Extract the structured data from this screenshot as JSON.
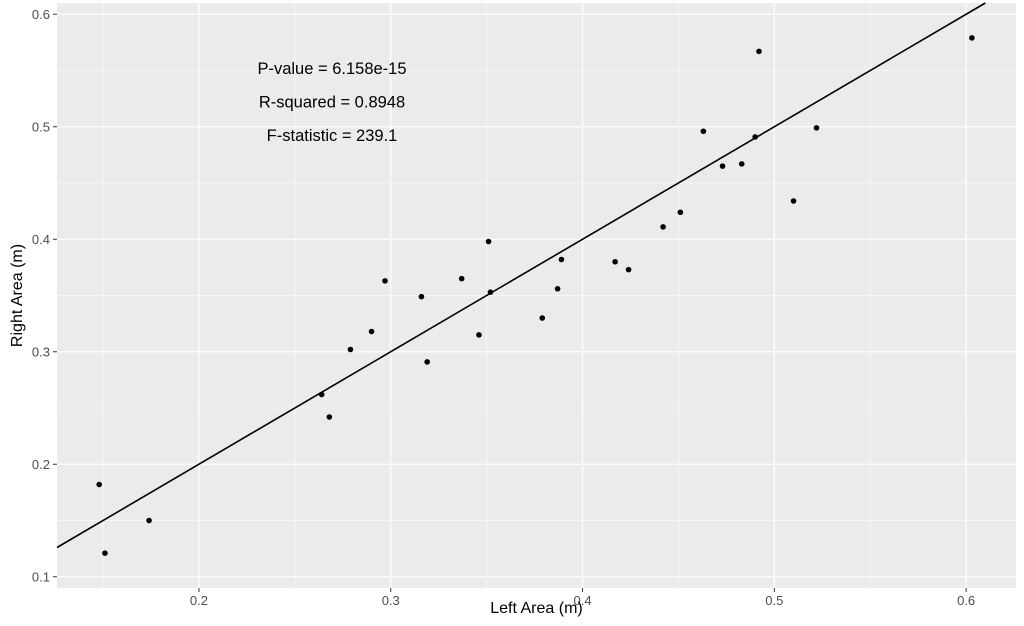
{
  "chart_data": {
    "type": "scatter",
    "title": "",
    "xlabel": "Left Area (m)",
    "ylabel": "Right Area (m)",
    "xlim": [
      0.126,
      0.626
    ],
    "ylim": [
      0.09,
      0.61
    ],
    "x_ticks": [
      0.2,
      0.3,
      0.4,
      0.5,
      0.6
    ],
    "y_ticks": [
      0.1,
      0.2,
      0.3,
      0.4,
      0.5,
      0.6
    ],
    "x_minor": [
      0.15,
      0.25,
      0.35,
      0.45,
      0.55
    ],
    "y_minor": [
      0.15,
      0.25,
      0.35,
      0.45,
      0.55
    ],
    "grid": true,
    "colors": {
      "panel": "#ebebeb",
      "grid": "#ffffff",
      "point": "#000000",
      "line": "#000000",
      "tick_text": "#4d4d4d"
    },
    "annotations": [
      "P-value = 6.158e-15",
      "R-squared = 0.8948",
      "F-statistic = 239.1"
    ],
    "fit_line": {
      "slope": 1.0,
      "intercept": 0.0
    },
    "points": [
      {
        "x": 0.148,
        "y": 0.182
      },
      {
        "x": 0.151,
        "y": 0.121
      },
      {
        "x": 0.174,
        "y": 0.15
      },
      {
        "x": 0.264,
        "y": 0.262
      },
      {
        "x": 0.268,
        "y": 0.242
      },
      {
        "x": 0.279,
        "y": 0.302
      },
      {
        "x": 0.29,
        "y": 0.318
      },
      {
        "x": 0.297,
        "y": 0.363
      },
      {
        "x": 0.316,
        "y": 0.349
      },
      {
        "x": 0.319,
        "y": 0.291
      },
      {
        "x": 0.337,
        "y": 0.365
      },
      {
        "x": 0.346,
        "y": 0.315
      },
      {
        "x": 0.351,
        "y": 0.398
      },
      {
        "x": 0.352,
        "y": 0.353
      },
      {
        "x": 0.379,
        "y": 0.33
      },
      {
        "x": 0.387,
        "y": 0.356
      },
      {
        "x": 0.389,
        "y": 0.382
      },
      {
        "x": 0.417,
        "y": 0.38
      },
      {
        "x": 0.424,
        "y": 0.373
      },
      {
        "x": 0.442,
        "y": 0.411
      },
      {
        "x": 0.451,
        "y": 0.424
      },
      {
        "x": 0.463,
        "y": 0.496
      },
      {
        "x": 0.473,
        "y": 0.465
      },
      {
        "x": 0.483,
        "y": 0.467
      },
      {
        "x": 0.49,
        "y": 0.491
      },
      {
        "x": 0.492,
        "y": 0.567
      },
      {
        "x": 0.51,
        "y": 0.434
      },
      {
        "x": 0.522,
        "y": 0.499
      },
      {
        "x": 0.603,
        "y": 0.579
      }
    ]
  }
}
